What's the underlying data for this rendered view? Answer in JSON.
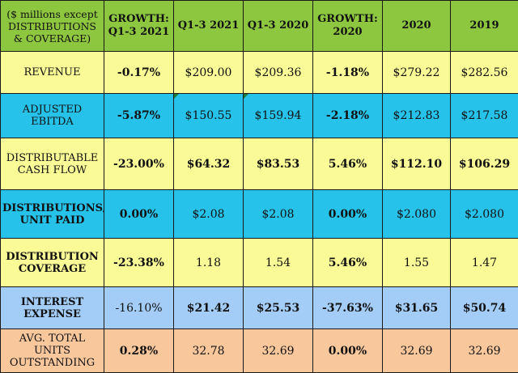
{
  "header": {
    "label": "($ millions except DISTRIBUTIONS & COVERAGE)",
    "growth_q13_2021": "GROWTH: Q1-3 2021",
    "q13_2021": "Q1-3 2021",
    "q13_2020": "Q1-3 2020",
    "growth_2020": "GROWTH: 2020",
    "y2020": "2020",
    "y2019": "2019"
  },
  "rows": [
    {
      "label": "REVENUE",
      "values": [
        "-0.17%",
        "$209.00",
        "$209.36",
        "-1.18%",
        "$279.22",
        "$282.56"
      ]
    },
    {
      "label": "ADJUSTED EBITDA",
      "values": [
        "-5.87%",
        "$150.55",
        "$159.94",
        "-2.18%",
        "$212.83",
        "$217.58"
      ]
    },
    {
      "label": "DISTRIBUTABLE CASH FLOW",
      "values": [
        "-23.00%",
        "$64.32",
        "$83.53",
        "5.46%",
        "$112.10",
        "$106.29"
      ]
    },
    {
      "label": "DISTRIBUTIONS/ UNIT PAID",
      "values": [
        "0.00%",
        "$2.08",
        "$2.08",
        "0.00%",
        "$2.080",
        "$2.080"
      ]
    },
    {
      "label": "DISTRIBUTION COVERAGE",
      "values": [
        "-23.38%",
        "1.18",
        "1.54",
        "5.46%",
        "1.55",
        "1.47"
      ]
    },
    {
      "label": "INTEREST EXPENSE",
      "values": [
        "-16.10%",
        "$21.42",
        "$25.53",
        "-37.63%",
        "$31.65",
        "$50.74"
      ]
    },
    {
      "label": "AVG. TOTAL UNITS OUTSTANDING",
      "values": [
        "0.28%",
        "32.78",
        "32.69",
        "0.00%",
        "32.69",
        "32.69"
      ]
    }
  ],
  "colors": {
    "header": "#8dc63f",
    "yellow": "#fafa96",
    "cyan": "#26c2ea",
    "lightblue": "#a3cdf7",
    "peach": "#f9c79c"
  }
}
